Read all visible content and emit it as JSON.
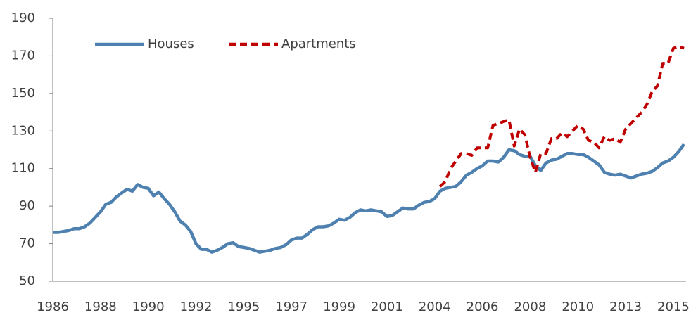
{
  "chart_data": {
    "type": "line",
    "categories": [
      "1986",
      null,
      null,
      null,
      null,
      null,
      null,
      null,
      null,
      "1988",
      null,
      null,
      null,
      null,
      null,
      null,
      null,
      null,
      "1990",
      null,
      null,
      null,
      null,
      null,
      null,
      null,
      null,
      "1992",
      null,
      null,
      null,
      null,
      null,
      null,
      null,
      null,
      "1995",
      null,
      null,
      null,
      null,
      null,
      null,
      null,
      null,
      "1997",
      null,
      null,
      null,
      null,
      null,
      null,
      null,
      null,
      "1999",
      null,
      null,
      null,
      null,
      null,
      null,
      null,
      null,
      "2001",
      null,
      null,
      null,
      null,
      null,
      null,
      null,
      null,
      "2004",
      null,
      null,
      null,
      null,
      null,
      null,
      null,
      null,
      "2006",
      null,
      null,
      null,
      null,
      null,
      null,
      null,
      null,
      "2008",
      null,
      null,
      null,
      null,
      null,
      null,
      null,
      null,
      "2010",
      null,
      null,
      null,
      null,
      null,
      null,
      null,
      null,
      "2013",
      null,
      null,
      null,
      null,
      null,
      null,
      null,
      null,
      "2015",
      null,
      null
    ],
    "series": [
      {
        "name": "Houses",
        "color": "#4f81b0",
        "dash": false,
        "values": [
          76,
          76,
          76.5,
          77,
          78,
          78,
          79,
          81,
          84,
          87,
          91,
          92,
          95,
          97,
          99,
          98,
          101.5,
          100,
          99.5,
          95.5,
          97.5,
          94,
          91,
          87,
          82,
          80,
          76.5,
          70,
          67,
          67,
          65.5,
          66.5,
          68,
          70,
          70.5,
          68.5,
          68,
          67.5,
          66.5,
          65.5,
          66,
          66.5,
          67.5,
          68,
          69.5,
          72,
          73,
          73,
          75,
          77.5,
          79,
          79,
          79.5,
          81,
          83,
          82.5,
          84,
          86.5,
          88,
          87.5,
          88,
          87.5,
          87,
          84.5,
          85,
          87,
          89,
          88.5,
          88.5,
          90.5,
          92,
          92.5,
          94,
          98,
          99.5,
          100,
          100.5,
          103,
          106.5,
          108,
          110,
          111.5,
          114,
          114,
          113.5,
          116,
          120,
          119.5,
          117.5,
          116.5,
          116.5,
          111.5,
          109,
          113,
          114.5,
          115,
          116.5,
          118,
          118,
          117.5,
          117.5,
          116,
          114,
          112,
          108,
          107,
          106.5,
          107,
          106,
          105,
          106,
          107,
          107.5,
          108.5,
          110.5,
          113,
          114,
          116,
          119,
          123
        ]
      },
      {
        "name": "Apartments",
        "color": "#c00000",
        "dash": true,
        "values": [
          null,
          null,
          null,
          null,
          null,
          null,
          null,
          null,
          null,
          null,
          null,
          null,
          null,
          null,
          null,
          null,
          null,
          null,
          null,
          null,
          null,
          null,
          null,
          null,
          null,
          null,
          null,
          null,
          null,
          null,
          null,
          null,
          null,
          null,
          null,
          null,
          null,
          null,
          null,
          null,
          null,
          null,
          null,
          null,
          null,
          null,
          null,
          null,
          null,
          null,
          null,
          null,
          null,
          null,
          null,
          null,
          null,
          null,
          null,
          null,
          null,
          null,
          null,
          null,
          null,
          null,
          null,
          null,
          null,
          null,
          null,
          null,
          null,
          100.5,
          103,
          110,
          114,
          118,
          118,
          117,
          121,
          121,
          121,
          133,
          134,
          135,
          136,
          122,
          131,
          128,
          116,
          108,
          118,
          118,
          126,
          126,
          129,
          127,
          130,
          133,
          131,
          125,
          124,
          121,
          127,
          125,
          126,
          124,
          131,
          134,
          137,
          140,
          144,
          151,
          154,
          166,
          166,
          174,
          175,
          174
        ]
      }
    ],
    "ylim": [
      50,
      190
    ],
    "yticks": [
      50,
      70,
      90,
      110,
      130,
      150,
      170,
      190
    ],
    "legend": "top-left",
    "grid": false
  }
}
